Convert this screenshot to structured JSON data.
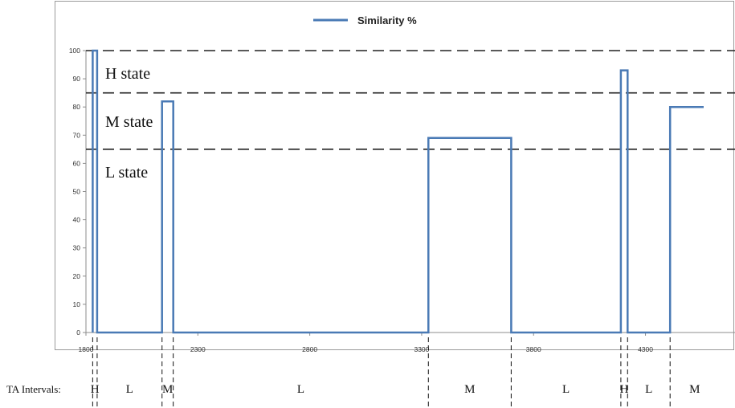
{
  "chart_data": {
    "type": "line",
    "step": true,
    "legend": {
      "label": "Similarity %",
      "position": "top-center"
    },
    "series": [
      {
        "name": "Similarity %",
        "color": "#4a7ab5",
        "x": [
          1830,
          1830,
          1850,
          1850,
          2140,
          2140,
          2190,
          2190,
          3330,
          3330,
          3700,
          3700,
          4190,
          4190,
          4220,
          4220,
          4410,
          4410,
          4560
        ],
        "y": [
          0,
          100,
          100,
          0,
          0,
          82,
          82,
          0,
          0,
          69,
          69,
          0,
          0,
          93,
          93,
          0,
          0,
          80,
          80
        ]
      }
    ],
    "xlim": [
      1800,
      4700
    ],
    "ylim": [
      0,
      100
    ],
    "xticks": [
      1800,
      2300,
      2800,
      3300,
      3800,
      4300
    ],
    "yticks": [
      0,
      10,
      20,
      30,
      40,
      50,
      60,
      70,
      80,
      90,
      100
    ],
    "grid": false,
    "thresholds": [
      {
        "y": 100,
        "style": "dashed"
      },
      {
        "y": 85,
        "style": "dashed"
      },
      {
        "y": 65,
        "style": "dashed"
      }
    ],
    "state_labels": [
      {
        "text": "H state",
        "y": 92
      },
      {
        "text": "M state",
        "y": 75
      },
      {
        "text": "L state",
        "y": 57
      }
    ],
    "intervals": {
      "row_label": "TA Intervals:",
      "boundaries": [
        1830,
        1850,
        2140,
        2190,
        3330,
        3700,
        4190,
        4220,
        4410
      ],
      "labels": [
        {
          "text": "H",
          "x": 1840
        },
        {
          "text": "L",
          "x": 1995
        },
        {
          "text": "M",
          "x": 2165
        },
        {
          "text": "L",
          "x": 2760
        },
        {
          "text": "M",
          "x": 3515
        },
        {
          "text": "L",
          "x": 3945
        },
        {
          "text": "H",
          "x": 4205
        },
        {
          "text": "L",
          "x": 4315
        },
        {
          "text": "M",
          "x": 4520
        }
      ]
    }
  }
}
